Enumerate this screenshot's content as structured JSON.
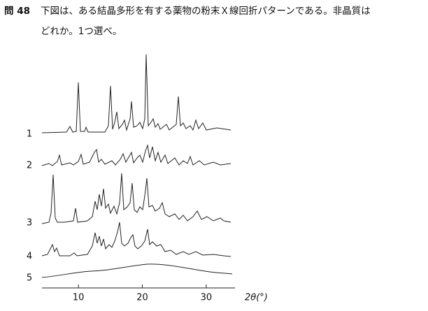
{
  "question": {
    "number": "問 48",
    "lines": [
      "下図は、ある結晶多形を有する薬物の粉末Ｘ線回折パターンである。非晶質は",
      "どれか。1つ選べ。"
    ]
  },
  "chart_data": {
    "type": "line",
    "xlabel": "2θ(°)",
    "xlim": [
      4.3,
      34.5
    ],
    "xticks": [
      10,
      20,
      30
    ],
    "series": [
      {
        "name": "1"
      },
      {
        "name": "2"
      },
      {
        "name": "3"
      },
      {
        "name": "4"
      },
      {
        "name": "5"
      }
    ]
  }
}
